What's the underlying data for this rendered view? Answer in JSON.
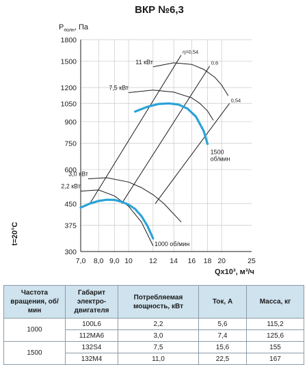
{
  "chart_data": {
    "type": "line",
    "title": "ВКР №6,3",
    "ylabel_main": "P",
    "ylabel_sub": "полн",
    "ylabel_unit": ", Па",
    "xlabel": "Qx10³, м³/ч",
    "temperature_label": "t=20°C",
    "y_ticks": [
      300,
      375,
      450,
      600,
      750,
      900,
      1050,
      1200,
      1500,
      1800
    ],
    "x_ticks": [
      7.0,
      8.0,
      9.0,
      10,
      12,
      14,
      16,
      18,
      20,
      25
    ],
    "x_tick_labels": [
      "7,0",
      "8,0",
      "9,0",
      "10",
      "12",
      "14",
      "16",
      "18",
      "20",
      "25"
    ],
    "xscale": "log",
    "yscale": "log",
    "xlim": [
      7.0,
      25
    ],
    "ylim": [
      300,
      1800
    ],
    "grid": true,
    "series": [
      {
        "name": "1000 об/мин",
        "color": "#29a3d8",
        "x": [
          7.0,
          7.5,
          8.0,
          8.5,
          9.0,
          9.5,
          10.0,
          10.5,
          11.0,
          11.5,
          12.0
        ],
        "y": [
          435,
          450,
          460,
          465,
          464,
          457,
          446,
          430,
          405,
          373,
          335
        ]
      },
      {
        "name": "1500 об/мин",
        "color": "#29a3d8",
        "x": [
          10.5,
          11.5,
          12.5,
          13.5,
          14.5,
          15.5,
          16.5,
          17.5,
          18.0
        ],
        "y": [
          980,
          1020,
          1045,
          1050,
          1040,
          1005,
          940,
          830,
          745
        ]
      }
    ],
    "power_lines": [
      {
        "label": "2,2 кВт",
        "x": [
          7.0,
          8.0,
          9.0,
          10.0,
          11.0,
          12.0
        ],
        "y": [
          500,
          505,
          480,
          440,
          385,
          315
        ]
      },
      {
        "label": "3,0 кВт",
        "x": [
          7.4,
          8.5,
          10.0,
          11.0,
          12.0,
          13.0,
          14.0,
          14.8
        ],
        "y": [
          555,
          560,
          540,
          515,
          485,
          450,
          412,
          385
        ]
      },
      {
        "label": "7,5 кВт",
        "x": [
          10.0,
          12.0,
          14.0,
          16.0,
          17.0,
          18.0,
          18.8
        ],
        "y": [
          1150,
          1175,
          1155,
          1100,
          1050,
          985,
          910
        ]
      },
      {
        "label": "11 кВт",
        "x": [
          12.0,
          14.0,
          16.0,
          17.5,
          19.0,
          20.0,
          21.0
        ],
        "y": [
          1430,
          1480,
          1460,
          1400,
          1310,
          1225,
          1120
        ]
      }
    ],
    "efficiency_lines": [
      {
        "label": "η=0,54",
        "x": [
          7.5,
          14.8
        ],
        "y": [
          450,
          1580
        ]
      },
      {
        "label": "0,6",
        "x": [
          9.5,
          18.3
        ],
        "y": [
          450,
          1440
        ]
      },
      {
        "label": "0,54",
        "x": [
          12.2,
          21.2
        ],
        "y": [
          450,
          1050
        ]
      }
    ],
    "speed_labels": [
      {
        "text": "1000 об/мин",
        "x": 12.0,
        "y": 322
      },
      {
        "text": "1500",
        "x": 18.2,
        "y": 700
      },
      {
        "text": "об/мин",
        "x": 18.2,
        "y": 660
      }
    ]
  },
  "table": {
    "headers": [
      "Частота вращения, об/мин",
      "Габарит электро-двигателя",
      "Потребляемая мощность, кВт",
      "Ток, А",
      "Масса, кг"
    ],
    "groups": [
      {
        "speed": "1000",
        "rows": [
          [
            "100L6",
            "2,2",
            "5,6",
            "115,2"
          ],
          [
            "112MA6",
            "3,0",
            "7,4",
            "125,6"
          ]
        ]
      },
      {
        "speed": "1500",
        "rows": [
          [
            "132S4",
            "7,5",
            "15,6",
            "155"
          ],
          [
            "132M4",
            "11,0",
            "22,5",
            "167"
          ]
        ]
      }
    ]
  }
}
